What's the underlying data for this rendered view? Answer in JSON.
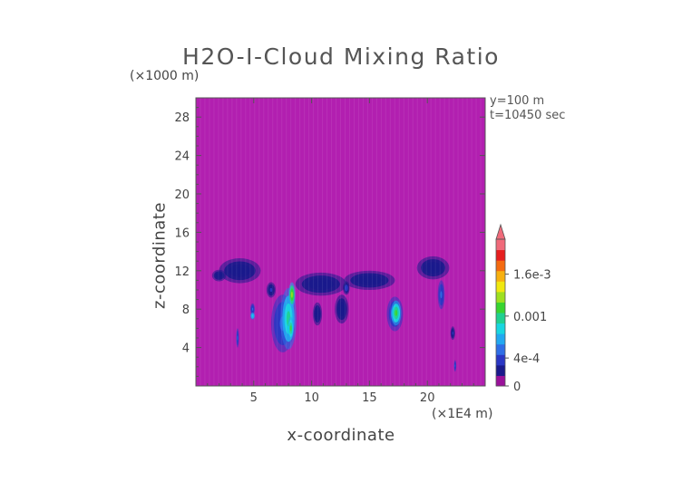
{
  "chart_data": {
    "type": "heatmap",
    "title": "H2O-I-Cloud Mixing Ratio",
    "xlabel": "x-coordinate",
    "ylabel": "z-coordinate",
    "x_unit": "(×1E4 m)",
    "z_unit": "(×1000 m)",
    "info": [
      "y=100 m",
      "t=10450 sec"
    ],
    "xlim": [
      0,
      25
    ],
    "ylim": [
      0,
      30
    ],
    "xticks": [
      5,
      10,
      15,
      20
    ],
    "yticks": [
      4,
      8,
      12,
      16,
      20,
      24,
      28
    ],
    "colorbar": {
      "colors": [
        "#9a119a",
        "#1a1a8c",
        "#2a37c4",
        "#2f6ee6",
        "#22a8f0",
        "#18d6e0",
        "#20d090",
        "#38d430",
        "#9ee020",
        "#f0e810",
        "#f7b010",
        "#f46a10",
        "#e61e1e",
        "#f06a7a"
      ],
      "tick_labels": [
        "0",
        "4e-4",
        "0.001",
        "1.6e-3"
      ],
      "tick_values": [
        0,
        0.0004,
        0.001,
        0.0016
      ],
      "range": [
        0,
        0.0021
      ],
      "extend": "max"
    },
    "background_color": "#b21fb0",
    "regions": [
      {
        "x": 3.8,
        "z": 12.0,
        "rx": 1.8,
        "rz": 1.3,
        "v": 8e-05
      },
      {
        "x": 2.0,
        "z": 11.5,
        "rx": 0.6,
        "rz": 0.6,
        "v": 6e-05
      },
      {
        "x": 10.8,
        "z": 10.6,
        "rx": 2.2,
        "rz": 1.2,
        "v": 8e-05
      },
      {
        "x": 15.0,
        "z": 11.0,
        "rx": 2.2,
        "rz": 1.0,
        "v": 7e-05
      },
      {
        "x": 20.5,
        "z": 12.3,
        "rx": 1.4,
        "rz": 1.2,
        "v": 8e-05
      },
      {
        "x": 12.6,
        "z": 8.0,
        "rx": 0.6,
        "rz": 1.5,
        "v": 5e-05
      },
      {
        "x": 10.5,
        "z": 7.5,
        "rx": 0.4,
        "rz": 1.2,
        "v": 4e-05
      },
      {
        "x": 4.9,
        "z": 8.0,
        "rx": 0.2,
        "rz": 0.6,
        "v": 0.0004
      },
      {
        "x": 4.9,
        "z": 7.3,
        "rx": 0.2,
        "rz": 0.4,
        "v": 0.0008
      },
      {
        "x": 3.6,
        "z": 5.0,
        "rx": 0.12,
        "rz": 1.0,
        "v": 0.00035
      },
      {
        "x": 7.5,
        "z": 6.5,
        "rx": 1.0,
        "rz": 3.0,
        "v": 0.0004
      },
      {
        "x": 8.0,
        "z": 7.0,
        "rx": 0.7,
        "rz": 3.2,
        "v": 0.0009
      },
      {
        "x": 8.3,
        "z": 9.5,
        "rx": 0.3,
        "rz": 1.3,
        "v": 0.0013
      },
      {
        "x": 8.2,
        "z": 6.0,
        "rx": 0.25,
        "rz": 1.2,
        "v": 0.0011
      },
      {
        "x": 17.2,
        "z": 7.5,
        "rx": 0.7,
        "rz": 1.8,
        "v": 0.0005
      },
      {
        "x": 17.3,
        "z": 7.6,
        "rx": 0.45,
        "rz": 1.3,
        "v": 0.0011
      },
      {
        "x": 21.2,
        "z": 9.5,
        "rx": 0.3,
        "rz": 1.5,
        "v": 0.0004
      },
      {
        "x": 22.4,
        "z": 2.1,
        "rx": 0.1,
        "rz": 0.6,
        "v": 0.0004
      },
      {
        "x": 22.2,
        "z": 5.5,
        "rx": 0.2,
        "rz": 0.7,
        "v": 0.0002
      },
      {
        "x": 6.5,
        "z": 10.0,
        "rx": 0.4,
        "rz": 0.8,
        "v": 0.0002
      },
      {
        "x": 13.0,
        "z": 10.2,
        "rx": 0.3,
        "rz": 0.7,
        "v": 0.00025
      }
    ]
  }
}
